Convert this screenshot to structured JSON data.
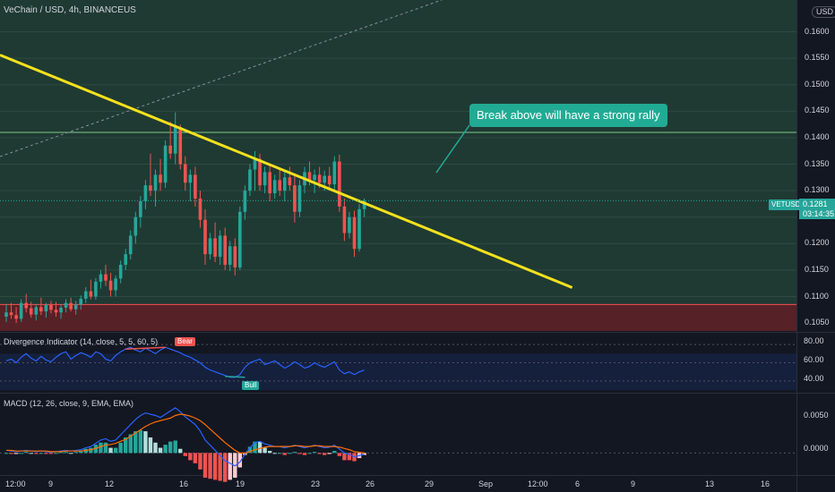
{
  "header": {
    "title": "VeChain / USD, 4h, BINANCEUS",
    "currency": "USD"
  },
  "price_axis": {
    "ticks": [
      "0.1600",
      "0.1550",
      "0.1500",
      "0.1450",
      "0.1400",
      "0.1350",
      "0.1300",
      "0.1250",
      "0.1200",
      "0.1150",
      "0.1100",
      "0.1050"
    ],
    "tick_values": [
      0.16,
      0.155,
      0.15,
      0.145,
      0.14,
      0.135,
      0.13,
      0.125,
      0.12,
      0.115,
      0.11,
      0.105
    ]
  },
  "last_price": {
    "symbol": "VETUSD",
    "value": "0.1281",
    "countdown": "03:14:35"
  },
  "annotation": {
    "text": "Break above will have a strong rally"
  },
  "divergence": {
    "title": "Divergence Indicator (14, close, 5, 5, 60, 5)",
    "ticks": [
      "80.00",
      "60.00",
      "40.00"
    ],
    "bear_label": "Bear",
    "bull_label": "Bull"
  },
  "macd": {
    "title": "MACD (12, 26, close, 9, EMA, EMA)",
    "ticks": [
      "0.0050",
      "0.0000"
    ]
  },
  "time_axis": {
    "ticks": [
      "12:00",
      "9",
      "12",
      "16",
      "19",
      "23",
      "26",
      "29",
      "Sep",
      "12:00",
      "6",
      "9",
      "13",
      "16"
    ]
  },
  "colors": {
    "background": "#131722",
    "up": "#26a69a",
    "down": "#ef5350",
    "trendline": "#f5e11d",
    "support_zone": "#5c1f26",
    "resistance_line": "#7fc98b",
    "rsi": "#2962ff",
    "macd_line": "#2962ff",
    "signal_line": "#ff6d00"
  },
  "chart_data": {
    "type": "candlestick",
    "candles": [
      {
        "o": 0.1062,
        "h": 0.1085,
        "l": 0.1052,
        "c": 0.107
      },
      {
        "o": 0.107,
        "h": 0.1088,
        "l": 0.1058,
        "c": 0.1065
      },
      {
        "o": 0.1065,
        "h": 0.108,
        "l": 0.105,
        "c": 0.1058
      },
      {
        "o": 0.1058,
        "h": 0.1095,
        "l": 0.1052,
        "c": 0.1088
      },
      {
        "o": 0.1088,
        "h": 0.1105,
        "l": 0.107,
        "c": 0.1078
      },
      {
        "o": 0.1078,
        "h": 0.109,
        "l": 0.106,
        "c": 0.1066
      },
      {
        "o": 0.1066,
        "h": 0.1085,
        "l": 0.1055,
        "c": 0.108
      },
      {
        "o": 0.108,
        "h": 0.1098,
        "l": 0.1065,
        "c": 0.1072
      },
      {
        "o": 0.1072,
        "h": 0.1088,
        "l": 0.106,
        "c": 0.1084
      },
      {
        "o": 0.1084,
        "h": 0.1092,
        "l": 0.1068,
        "c": 0.1075
      },
      {
        "o": 0.1075,
        "h": 0.109,
        "l": 0.1062,
        "c": 0.107
      },
      {
        "o": 0.107,
        "h": 0.1085,
        "l": 0.1058,
        "c": 0.1079
      },
      {
        "o": 0.1079,
        "h": 0.1095,
        "l": 0.107,
        "c": 0.1088
      },
      {
        "o": 0.1088,
        "h": 0.1098,
        "l": 0.1072,
        "c": 0.1076
      },
      {
        "o": 0.1076,
        "h": 0.1092,
        "l": 0.1066,
        "c": 0.1085
      },
      {
        "o": 0.1085,
        "h": 0.1102,
        "l": 0.1075,
        "c": 0.1096
      },
      {
        "o": 0.1096,
        "h": 0.1118,
        "l": 0.1088,
        "c": 0.111
      },
      {
        "o": 0.111,
        "h": 0.1132,
        "l": 0.1095,
        "c": 0.11
      },
      {
        "o": 0.11,
        "h": 0.1135,
        "l": 0.1094,
        "c": 0.1128
      },
      {
        "o": 0.1128,
        "h": 0.115,
        "l": 0.1115,
        "c": 0.1142
      },
      {
        "o": 0.1142,
        "h": 0.116,
        "l": 0.112,
        "c": 0.113
      },
      {
        "o": 0.113,
        "h": 0.1145,
        "l": 0.11,
        "c": 0.1112
      },
      {
        "o": 0.1112,
        "h": 0.114,
        "l": 0.11,
        "c": 0.1134
      },
      {
        "o": 0.1134,
        "h": 0.1168,
        "l": 0.1125,
        "c": 0.116
      },
      {
        "o": 0.116,
        "h": 0.119,
        "l": 0.115,
        "c": 0.118
      },
      {
        "o": 0.118,
        "h": 0.1225,
        "l": 0.117,
        "c": 0.1215
      },
      {
        "o": 0.1215,
        "h": 0.126,
        "l": 0.12,
        "c": 0.125
      },
      {
        "o": 0.125,
        "h": 0.129,
        "l": 0.123,
        "c": 0.128
      },
      {
        "o": 0.128,
        "h": 0.132,
        "l": 0.1265,
        "c": 0.131
      },
      {
        "o": 0.131,
        "h": 0.137,
        "l": 0.129,
        "c": 0.13
      },
      {
        "o": 0.13,
        "h": 0.134,
        "l": 0.127,
        "c": 0.133
      },
      {
        "o": 0.133,
        "h": 0.136,
        "l": 0.13,
        "c": 0.1315
      },
      {
        "o": 0.1315,
        "h": 0.1395,
        "l": 0.1305,
        "c": 0.1385
      },
      {
        "o": 0.1385,
        "h": 0.143,
        "l": 0.136,
        "c": 0.137
      },
      {
        "o": 0.137,
        "h": 0.1448,
        "l": 0.135,
        "c": 0.142
      },
      {
        "o": 0.142,
        "h": 0.1425,
        "l": 0.134,
        "c": 0.135
      },
      {
        "o": 0.135,
        "h": 0.1365,
        "l": 0.13,
        "c": 0.1315
      },
      {
        "o": 0.1315,
        "h": 0.134,
        "l": 0.128,
        "c": 0.133
      },
      {
        "o": 0.133,
        "h": 0.1345,
        "l": 0.127,
        "c": 0.1285
      },
      {
        "o": 0.1285,
        "h": 0.13,
        "l": 0.123,
        "c": 0.1245
      },
      {
        "o": 0.1245,
        "h": 0.1265,
        "l": 0.116,
        "c": 0.118
      },
      {
        "o": 0.118,
        "h": 0.122,
        "l": 0.117,
        "c": 0.121
      },
      {
        "o": 0.121,
        "h": 0.124,
        "l": 0.1165,
        "c": 0.1175
      },
      {
        "o": 0.1175,
        "h": 0.1225,
        "l": 0.116,
        "c": 0.1215
      },
      {
        "o": 0.1215,
        "h": 0.123,
        "l": 0.115,
        "c": 0.116
      },
      {
        "o": 0.116,
        "h": 0.1205,
        "l": 0.1148,
        "c": 0.1195
      },
      {
        "o": 0.1195,
        "h": 0.121,
        "l": 0.114,
        "c": 0.1155
      },
      {
        "o": 0.1155,
        "h": 0.127,
        "l": 0.115,
        "c": 0.126
      },
      {
        "o": 0.126,
        "h": 0.131,
        "l": 0.1245,
        "c": 0.13
      },
      {
        "o": 0.13,
        "h": 0.135,
        "l": 0.129,
        "c": 0.134
      },
      {
        "o": 0.134,
        "h": 0.1375,
        "l": 0.13,
        "c": 0.136
      },
      {
        "o": 0.136,
        "h": 0.137,
        "l": 0.13,
        "c": 0.131
      },
      {
        "o": 0.131,
        "h": 0.1345,
        "l": 0.1295,
        "c": 0.1335
      },
      {
        "o": 0.1335,
        "h": 0.135,
        "l": 0.128,
        "c": 0.1295
      },
      {
        "o": 0.1295,
        "h": 0.133,
        "l": 0.1285,
        "c": 0.132
      },
      {
        "o": 0.132,
        "h": 0.134,
        "l": 0.129,
        "c": 0.13
      },
      {
        "o": 0.13,
        "h": 0.1335,
        "l": 0.128,
        "c": 0.1325
      },
      {
        "o": 0.1325,
        "h": 0.1345,
        "l": 0.13,
        "c": 0.131
      },
      {
        "o": 0.131,
        "h": 0.133,
        "l": 0.124,
        "c": 0.126
      },
      {
        "o": 0.126,
        "h": 0.132,
        "l": 0.125,
        "c": 0.131
      },
      {
        "o": 0.131,
        "h": 0.1345,
        "l": 0.1295,
        "c": 0.1335
      },
      {
        "o": 0.1335,
        "h": 0.1355,
        "l": 0.131,
        "c": 0.132
      },
      {
        "o": 0.132,
        "h": 0.134,
        "l": 0.1295,
        "c": 0.133
      },
      {
        "o": 0.133,
        "h": 0.1345,
        "l": 0.1305,
        "c": 0.1315
      },
      {
        "o": 0.1315,
        "h": 0.1338,
        "l": 0.13,
        "c": 0.1328
      },
      {
        "o": 0.1328,
        "h": 0.1345,
        "l": 0.1305,
        "c": 0.1312
      },
      {
        "o": 0.1312,
        "h": 0.1365,
        "l": 0.13,
        "c": 0.1355
      },
      {
        "o": 0.1355,
        "h": 0.1368,
        "l": 0.126,
        "c": 0.127
      },
      {
        "o": 0.127,
        "h": 0.1285,
        "l": 0.1205,
        "c": 0.122
      },
      {
        "o": 0.122,
        "h": 0.126,
        "l": 0.121,
        "c": 0.125
      },
      {
        "o": 0.125,
        "h": 0.1262,
        "l": 0.1175,
        "c": 0.119
      },
      {
        "o": 0.119,
        "h": 0.1275,
        "l": 0.1185,
        "c": 0.1265
      },
      {
        "o": 0.1265,
        "h": 0.1285,
        "l": 0.125,
        "c": 0.1281
      }
    ],
    "trendline": {
      "from": [
        0,
        0.1556
      ],
      "to": [
        112,
        0.1117
      ]
    },
    "resistance_level": 0.141,
    "support_zone": [
      0.1035,
      0.1085
    ],
    "ylim": [
      0.1035,
      0.166
    ],
    "divergence_rsi": [
      62,
      64,
      60,
      66,
      70,
      65,
      62,
      67,
      63,
      61,
      66,
      70,
      72,
      64,
      68,
      71,
      69,
      66,
      72,
      70,
      64,
      62,
      68,
      72,
      75,
      77,
      74,
      72,
      76,
      73,
      70,
      74,
      77,
      75,
      73,
      71,
      68,
      66,
      63,
      60,
      55,
      52,
      50,
      48,
      46,
      44,
      44,
      47,
      55,
      60,
      62,
      64,
      58,
      60,
      62,
      58,
      54,
      57,
      61,
      58,
      54,
      56,
      60,
      57,
      55,
      58,
      61,
      52,
      48,
      50,
      47,
      50,
      52
    ],
    "divergence_ylim": [
      30,
      90
    ],
    "macd_line": [
      0.0004,
      0.0003,
      0.0002,
      0.0003,
      0.0004,
      0.0003,
      0.0002,
      0.0003,
      0.0002,
      0.0001,
      0.0002,
      0.0003,
      0.0004,
      0.0003,
      0.0004,
      0.0005,
      0.0008,
      0.001,
      0.0015,
      0.002,
      0.0022,
      0.0018,
      0.002,
      0.0028,
      0.0036,
      0.0044,
      0.0052,
      0.0058,
      0.0062,
      0.006,
      0.0058,
      0.0055,
      0.006,
      0.0065,
      0.007,
      0.0064,
      0.0056,
      0.005,
      0.0044,
      0.0034,
      0.002,
      0.0012,
      0.0004,
      -0.0004,
      -0.0012,
      -0.0016,
      -0.002,
      -0.0014,
      -0.0002,
      0.0008,
      0.0016,
      0.0018,
      0.0014,
      0.0012,
      0.001,
      0.001,
      0.0008,
      0.001,
      0.0012,
      0.001,
      0.0008,
      0.001,
      0.0012,
      0.001,
      0.0008,
      0.0009,
      0.0012,
      0.0006,
      0.0,
      -0.0002,
      -0.0006,
      -0.0004,
      -0.0002
    ],
    "signal_line": [
      0.0004,
      0.0004,
      0.0003,
      0.0003,
      0.0003,
      0.0003,
      0.0003,
      0.0003,
      0.0003,
      0.0002,
      0.0002,
      0.0002,
      0.0003,
      0.0003,
      0.0003,
      0.0003,
      0.0004,
      0.0005,
      0.0007,
      0.001,
      0.0012,
      0.0013,
      0.0015,
      0.0018,
      0.0021,
      0.0026,
      0.0031,
      0.0036,
      0.0041,
      0.0045,
      0.0048,
      0.005,
      0.0052,
      0.0054,
      0.0058,
      0.006,
      0.0059,
      0.0057,
      0.0054,
      0.005,
      0.0044,
      0.0037,
      0.003,
      0.0023,
      0.0016,
      0.001,
      0.0004,
      0.0,
      0.0,
      0.0002,
      0.0005,
      0.0007,
      0.0009,
      0.001,
      0.001,
      0.001,
      0.001,
      0.001,
      0.0011,
      0.0011,
      0.001,
      0.001,
      0.0011,
      0.0011,
      0.001,
      0.001,
      0.001,
      0.0009,
      0.0007,
      0.0005,
      0.0002,
      0.0001,
      0.0
    ],
    "macd_ylim": [
      -0.003,
      0.0085
    ]
  }
}
